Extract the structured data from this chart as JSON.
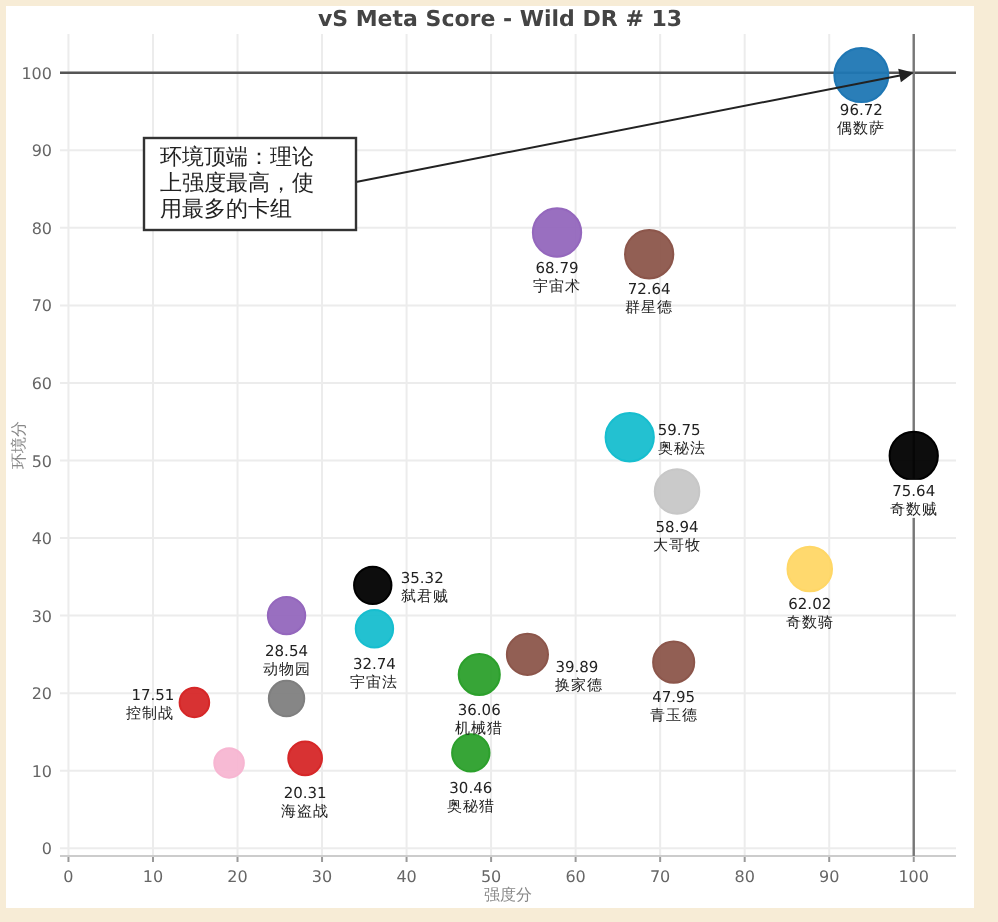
{
  "chart_data": {
    "type": "bubble",
    "title": "vS Meta Score - Wild DR # 13",
    "xlabel": "强度分",
    "ylabel": "环境分",
    "xlim": [
      -1,
      105
    ],
    "ylim": [
      -1,
      105
    ],
    "xticks": [
      0,
      10,
      20,
      30,
      40,
      50,
      60,
      70,
      80,
      90,
      100
    ],
    "yticks": [
      0,
      10,
      20,
      30,
      40,
      50,
      60,
      70,
      80,
      90,
      100
    ],
    "grid": true,
    "series": [
      {
        "x": [
          93.8,
          57.8,
          68.7,
          66.4,
          100,
          72,
          87.7,
          54.3,
          71.6,
          48.6,
          47.6,
          36,
          36.2,
          25.8,
          25.8,
          14.9,
          19,
          28
        ],
        "values": [
          99.7,
          79.4,
          76.6,
          53,
          50.6,
          46,
          36,
          25,
          24,
          22.4,
          12.3,
          33.9,
          28.3,
          30,
          19.3,
          18.8,
          11,
          11.6
        ],
        "sizes": [
          1,
          0.8,
          0.8,
          0.8,
          0.8,
          0.68,
          0.68,
          0.58,
          0.58,
          0.58,
          0.48,
          0.48,
          0.48,
          0.48,
          0.43,
          0.3,
          0.3,
          0.39
        ],
        "colors": [
          "#1f77b4",
          "#9467bd",
          "#8c564b",
          "#17becf",
          "#000000",
          "#c7c7c7",
          "#ffd766",
          "#8c564b",
          "#8c564b",
          "#2ca02c",
          "#2ca02c",
          "#000000",
          "#17becf",
          "#9467bd",
          "#7f7f7f",
          "#d62728",
          "#f7b6d2",
          "#d62728"
        ]
      }
    ],
    "ref_lines": [
      {
        "axis": "y",
        "value": 100,
        "color": "#555555"
      },
      {
        "axis": "x",
        "value": 100,
        "color": "#777777"
      }
    ],
    "annotations": [
      "环境顶端：理论上强度最高，使用最多的卡组",
      {
        "text": "96.72 偶数萨",
        "x": 93.8,
        "y": 99.7
      },
      {
        "text": "68.79 宇宙术",
        "x": 57.8,
        "y": 79.4
      },
      {
        "text": "72.64 群星德",
        "x": 68.7,
        "y": 76.6
      },
      {
        "text": "59.75 奥秘法",
        "x": 66.4,
        "y": 53
      },
      {
        "text": "75.64 奇数贼",
        "x": 100,
        "y": 50.6
      },
      {
        "text": "58.94 大哥牧",
        "x": 72,
        "y": 46
      },
      {
        "text": "62.02 奇数骑",
        "x": 87.7,
        "y": 36
      },
      {
        "text": "39.89 换家德",
        "x": 54.3,
        "y": 25
      },
      {
        "text": "47.95 青玉德",
        "x": 71.6,
        "y": 24
      },
      {
        "text": "36.06 机械猎",
        "x": 48.6,
        "y": 22.4
      },
      {
        "text": "30.46 奥秘猎",
        "x": 47.6,
        "y": 12.3
      },
      {
        "text": "35.32 弑君贼",
        "x": 36,
        "y": 33.9
      },
      {
        "text": "32.74 宇宙法",
        "x": 36.2,
        "y": 28.3
      },
      {
        "text": "28.54 动物园",
        "x": 25.8,
        "y": 30
      },
      {
        "text": "17.51 控制战",
        "x": 14.9,
        "y": 18.8
      },
      {
        "text": "20.31 海盗战",
        "x": 28,
        "y": 11.6
      }
    ]
  }
}
